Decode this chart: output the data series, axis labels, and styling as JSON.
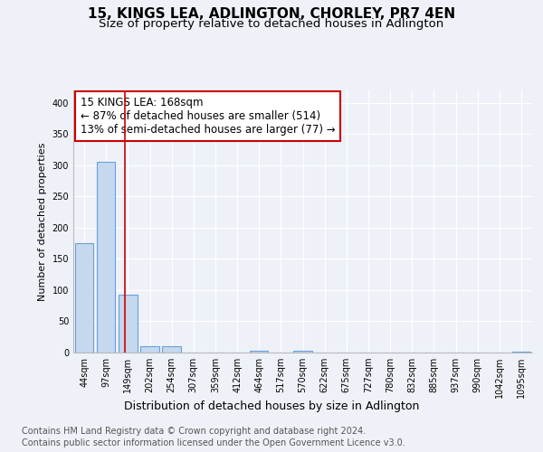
{
  "title": "15, KINGS LEA, ADLINGTON, CHORLEY, PR7 4EN",
  "subtitle": "Size of property relative to detached houses in Adlington",
  "xlabel": "Distribution of detached houses by size in Adlington",
  "ylabel": "Number of detached properties",
  "bar_color": "#c5d8ee",
  "bar_edge_color": "#6a9fd8",
  "categories": [
    "44sqm",
    "97sqm",
    "149sqm",
    "202sqm",
    "254sqm",
    "307sqm",
    "359sqm",
    "412sqm",
    "464sqm",
    "517sqm",
    "570sqm",
    "622sqm",
    "675sqm",
    "727sqm",
    "780sqm",
    "832sqm",
    "885sqm",
    "937sqm",
    "990sqm",
    "1042sqm",
    "1095sqm"
  ],
  "values": [
    175,
    305,
    93,
    10,
    10,
    0,
    0,
    0,
    3,
    0,
    3,
    0,
    0,
    0,
    0,
    0,
    0,
    0,
    0,
    0,
    2
  ],
  "vline_pos": 1.88,
  "annotation_line1": "15 KINGS LEA: 168sqm",
  "annotation_line2": "← 87% of detached houses are smaller (514)",
  "annotation_line3": "13% of semi-detached houses are larger (77) →",
  "annotation_box_color": "#ffffff",
  "annotation_box_edge_color": "#cc0000",
  "vline_color": "#cc0000",
  "ylim": [
    0,
    420
  ],
  "yticks": [
    0,
    50,
    100,
    150,
    200,
    250,
    300,
    350,
    400
  ],
  "footer_line1": "Contains HM Land Registry data © Crown copyright and database right 2024.",
  "footer_line2": "Contains public sector information licensed under the Open Government Licence v3.0.",
  "background_color": "#eef2f8",
  "grid_color": "#ffffff",
  "title_fontsize": 11,
  "subtitle_fontsize": 9.5,
  "ylabel_fontsize": 8,
  "xlabel_fontsize": 9,
  "annotation_fontsize": 8.5,
  "tick_fontsize": 7,
  "footer_fontsize": 7
}
